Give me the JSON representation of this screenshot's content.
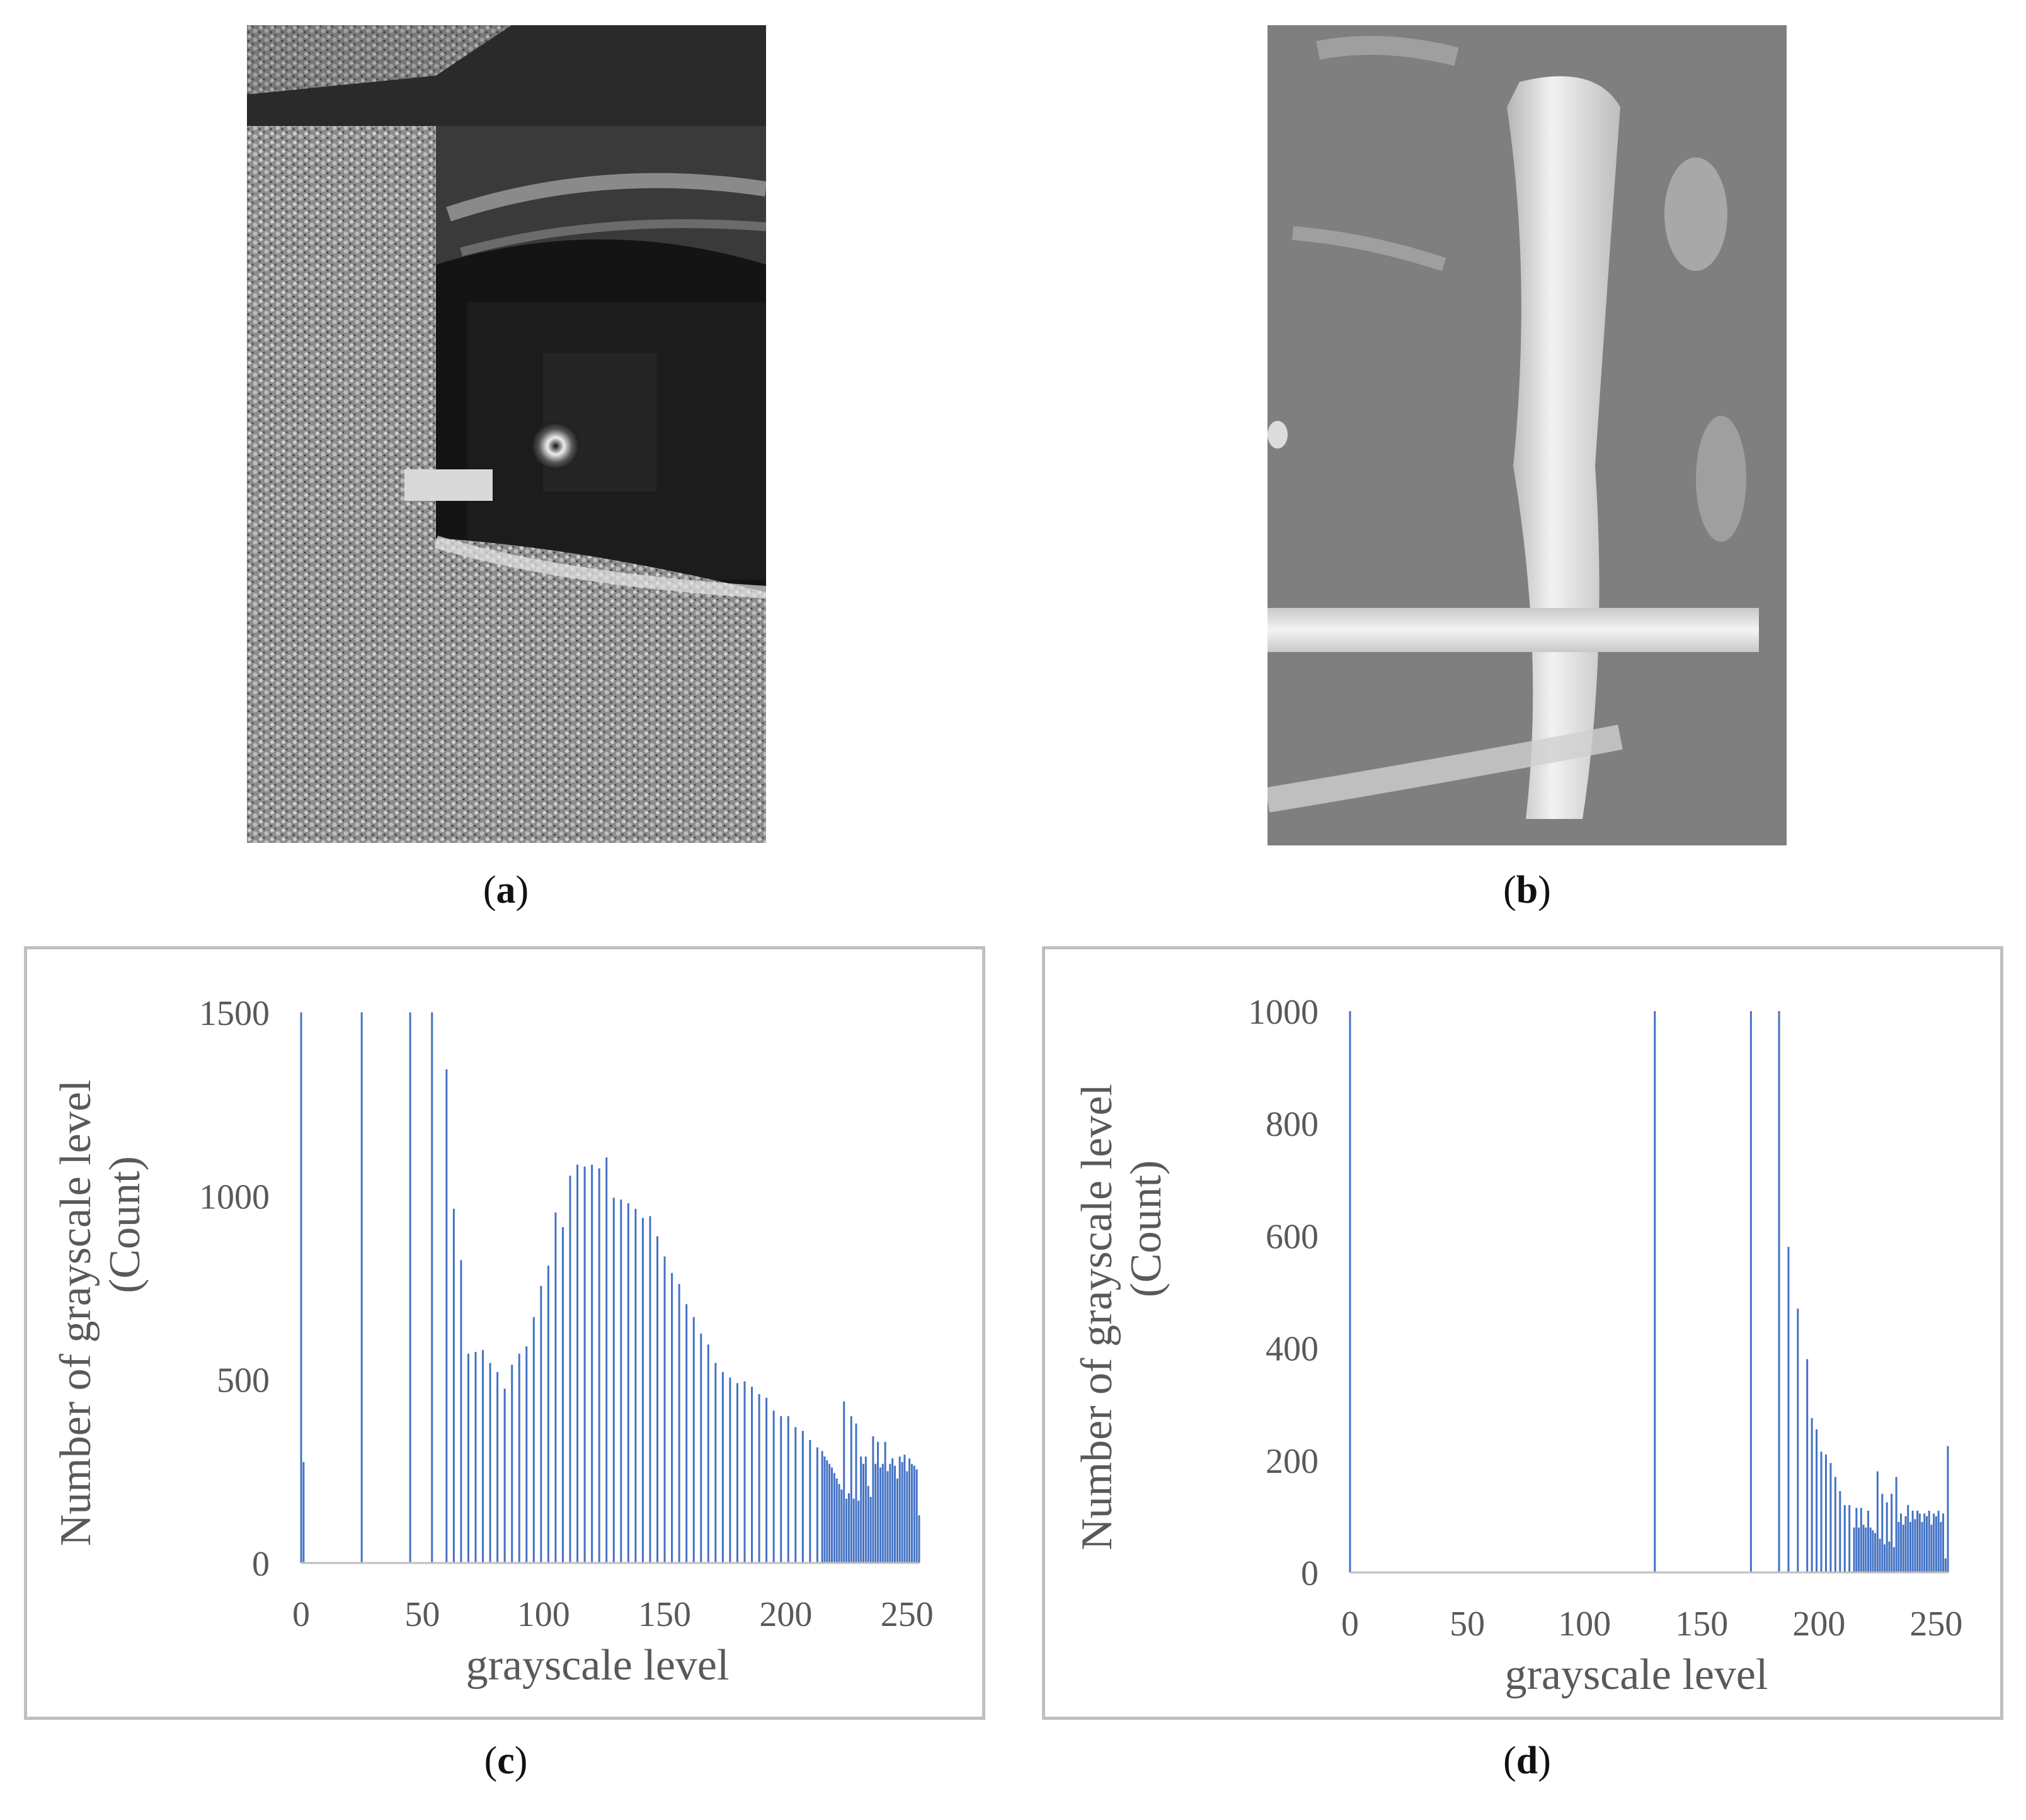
{
  "captions": {
    "a": "a",
    "b": "b",
    "c": "c",
    "d": "d"
  },
  "images": {
    "a": {
      "description_icon": "grayscale-photo",
      "tone": "dark"
    },
    "b": {
      "description_icon": "grayscale-photo",
      "tone": "gray"
    }
  },
  "colors": {
    "bar": "#4472C4",
    "axis": "#bfbfbf",
    "tick_text": "#595959"
  },
  "chart_data": [
    {
      "id": "c",
      "type": "bar",
      "xlabel": "grayscale level",
      "ylabel_line1": "Number of grayscale level",
      "ylabel_line2": "(Count)",
      "xlim": [
        0,
        255
      ],
      "ylim": [
        0,
        1500
      ],
      "xticks": [
        0,
        50,
        100,
        150,
        200,
        250
      ],
      "yticks": [
        0,
        500,
        1000,
        1500
      ],
      "grid": false,
      "bars": [
        [
          0,
          1500
        ],
        [
          1,
          275
        ],
        [
          25,
          1500
        ],
        [
          45,
          1500
        ],
        [
          54,
          1500
        ],
        [
          60,
          1345
        ],
        [
          63,
          965
        ],
        [
          66,
          825
        ],
        [
          69,
          570
        ],
        [
          72,
          575
        ],
        [
          75,
          580
        ],
        [
          78,
          545
        ],
        [
          81,
          520
        ],
        [
          84,
          475
        ],
        [
          87,
          540
        ],
        [
          90,
          570
        ],
        [
          93,
          590
        ],
        [
          96,
          670
        ],
        [
          99,
          755
        ],
        [
          102,
          810
        ],
        [
          105,
          955
        ],
        [
          108,
          915
        ],
        [
          111,
          1055
        ],
        [
          114,
          1085
        ],
        [
          117,
          1080
        ],
        [
          120,
          1085
        ],
        [
          123,
          1075
        ],
        [
          126,
          1105
        ],
        [
          129,
          995
        ],
        [
          132,
          990
        ],
        [
          135,
          980
        ],
        [
          138,
          965
        ],
        [
          141,
          940
        ],
        [
          144,
          945
        ],
        [
          147,
          890
        ],
        [
          150,
          835
        ],
        [
          153,
          790
        ],
        [
          156,
          760
        ],
        [
          159,
          705
        ],
        [
          162,
          670
        ],
        [
          165,
          625
        ],
        [
          168,
          595
        ],
        [
          171,
          545
        ],
        [
          174,
          520
        ],
        [
          177,
          505
        ],
        [
          180,
          490
        ],
        [
          183,
          495
        ],
        [
          186,
          480
        ],
        [
          189,
          460
        ],
        [
          192,
          450
        ],
        [
          195,
          415
        ],
        [
          198,
          400
        ],
        [
          201,
          400
        ],
        [
          204,
          370
        ],
        [
          207,
          360
        ],
        [
          210,
          335
        ],
        [
          213,
          315
        ],
        [
          215,
          305
        ],
        [
          216,
          290
        ],
        [
          217,
          280
        ],
        [
          218,
          270
        ],
        [
          219,
          260
        ],
        [
          220,
          245
        ],
        [
          221,
          230
        ],
        [
          222,
          215
        ],
        [
          223,
          200
        ],
        [
          224,
          440
        ],
        [
          225,
          175
        ],
        [
          226,
          190
        ],
        [
          227,
          400
        ],
        [
          228,
          175
        ],
        [
          229,
          380
        ],
        [
          230,
          170
        ],
        [
          231,
          290
        ],
        [
          232,
          270
        ],
        [
          233,
          290
        ],
        [
          234,
          210
        ],
        [
          235,
          180
        ],
        [
          236,
          345
        ],
        [
          237,
          270
        ],
        [
          238,
          330
        ],
        [
          239,
          260
        ],
        [
          240,
          270
        ],
        [
          241,
          330
        ],
        [
          242,
          250
        ],
        [
          243,
          270
        ],
        [
          244,
          285
        ],
        [
          245,
          265
        ],
        [
          246,
          230
        ],
        [
          247,
          290
        ],
        [
          248,
          275
        ],
        [
          249,
          295
        ],
        [
          250,
          250
        ],
        [
          251,
          285
        ],
        [
          252,
          270
        ],
        [
          253,
          265
        ],
        [
          254,
          255
        ],
        [
          255,
          130
        ]
      ]
    },
    {
      "id": "d",
      "type": "bar",
      "xlabel": "grayscale level",
      "ylabel_line1": "Number of grayscale level",
      "ylabel_line2": "(Count)",
      "xlim": [
        0,
        255
      ],
      "ylim": [
        0,
        1000
      ],
      "xticks": [
        0,
        50,
        100,
        150,
        200,
        250
      ],
      "yticks": [
        0,
        200,
        400,
        600,
        800,
        1000
      ],
      "grid": false,
      "bars": [
        [
          0,
          1000
        ],
        [
          130,
          1000
        ],
        [
          171,
          1000
        ],
        [
          183,
          1000
        ],
        [
          187,
          580
        ],
        [
          191,
          470
        ],
        [
          195,
          380
        ],
        [
          197,
          275
        ],
        [
          199,
          255
        ],
        [
          201,
          215
        ],
        [
          203,
          210
        ],
        [
          205,
          195
        ],
        [
          207,
          170
        ],
        [
          209,
          145
        ],
        [
          211,
          120
        ],
        [
          213,
          120
        ],
        [
          215,
          80
        ],
        [
          216,
          115
        ],
        [
          217,
          80
        ],
        [
          218,
          115
        ],
        [
          219,
          85
        ],
        [
          220,
          80
        ],
        [
          221,
          110
        ],
        [
          222,
          80
        ],
        [
          223,
          75
        ],
        [
          224,
          70
        ],
        [
          225,
          180
        ],
        [
          226,
          60
        ],
        [
          227,
          140
        ],
        [
          228,
          50
        ],
        [
          229,
          125
        ],
        [
          230,
          55
        ],
        [
          231,
          140
        ],
        [
          232,
          45
        ],
        [
          233,
          170
        ],
        [
          234,
          90
        ],
        [
          235,
          105
        ],
        [
          236,
          85
        ],
        [
          237,
          100
        ],
        [
          238,
          120
        ],
        [
          239,
          90
        ],
        [
          240,
          110
        ],
        [
          241,
          95
        ],
        [
          242,
          110
        ],
        [
          243,
          105
        ],
        [
          244,
          90
        ],
        [
          245,
          105
        ],
        [
          246,
          100
        ],
        [
          247,
          110
        ],
        [
          248,
          85
        ],
        [
          249,
          105
        ],
        [
          250,
          100
        ],
        [
          251,
          110
        ],
        [
          252,
          90
        ],
        [
          253,
          105
        ],
        [
          254,
          25
        ],
        [
          255,
          225
        ]
      ]
    }
  ]
}
